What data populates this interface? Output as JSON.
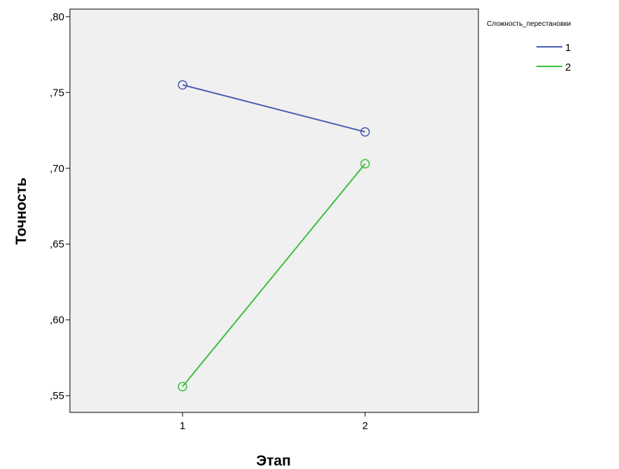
{
  "chart_data": {
    "type": "line",
    "xlabel": "Этап",
    "ylabel": "Точность",
    "categories": [
      "1",
      "2"
    ],
    "ylim": [
      0.539,
      0.805
    ],
    "y_ticks": [
      0.8,
      0.75,
      0.7,
      0.65,
      0.6,
      0.55
    ],
    "y_tick_labels": [
      ",80",
      ",75",
      ",70",
      ",65",
      ",60",
      ",55"
    ],
    "grid": false,
    "legend": {
      "title": "Сложность_перестановки",
      "placement": "top-right outside"
    },
    "series": [
      {
        "name": "1",
        "values": [
          0.755,
          0.724
        ],
        "color": "#4a5cb0"
      },
      {
        "name": "2",
        "values": [
          0.556,
          0.703
        ],
        "color": "#3fbf3f"
      }
    ],
    "plot_background": "#f0f0f0"
  }
}
